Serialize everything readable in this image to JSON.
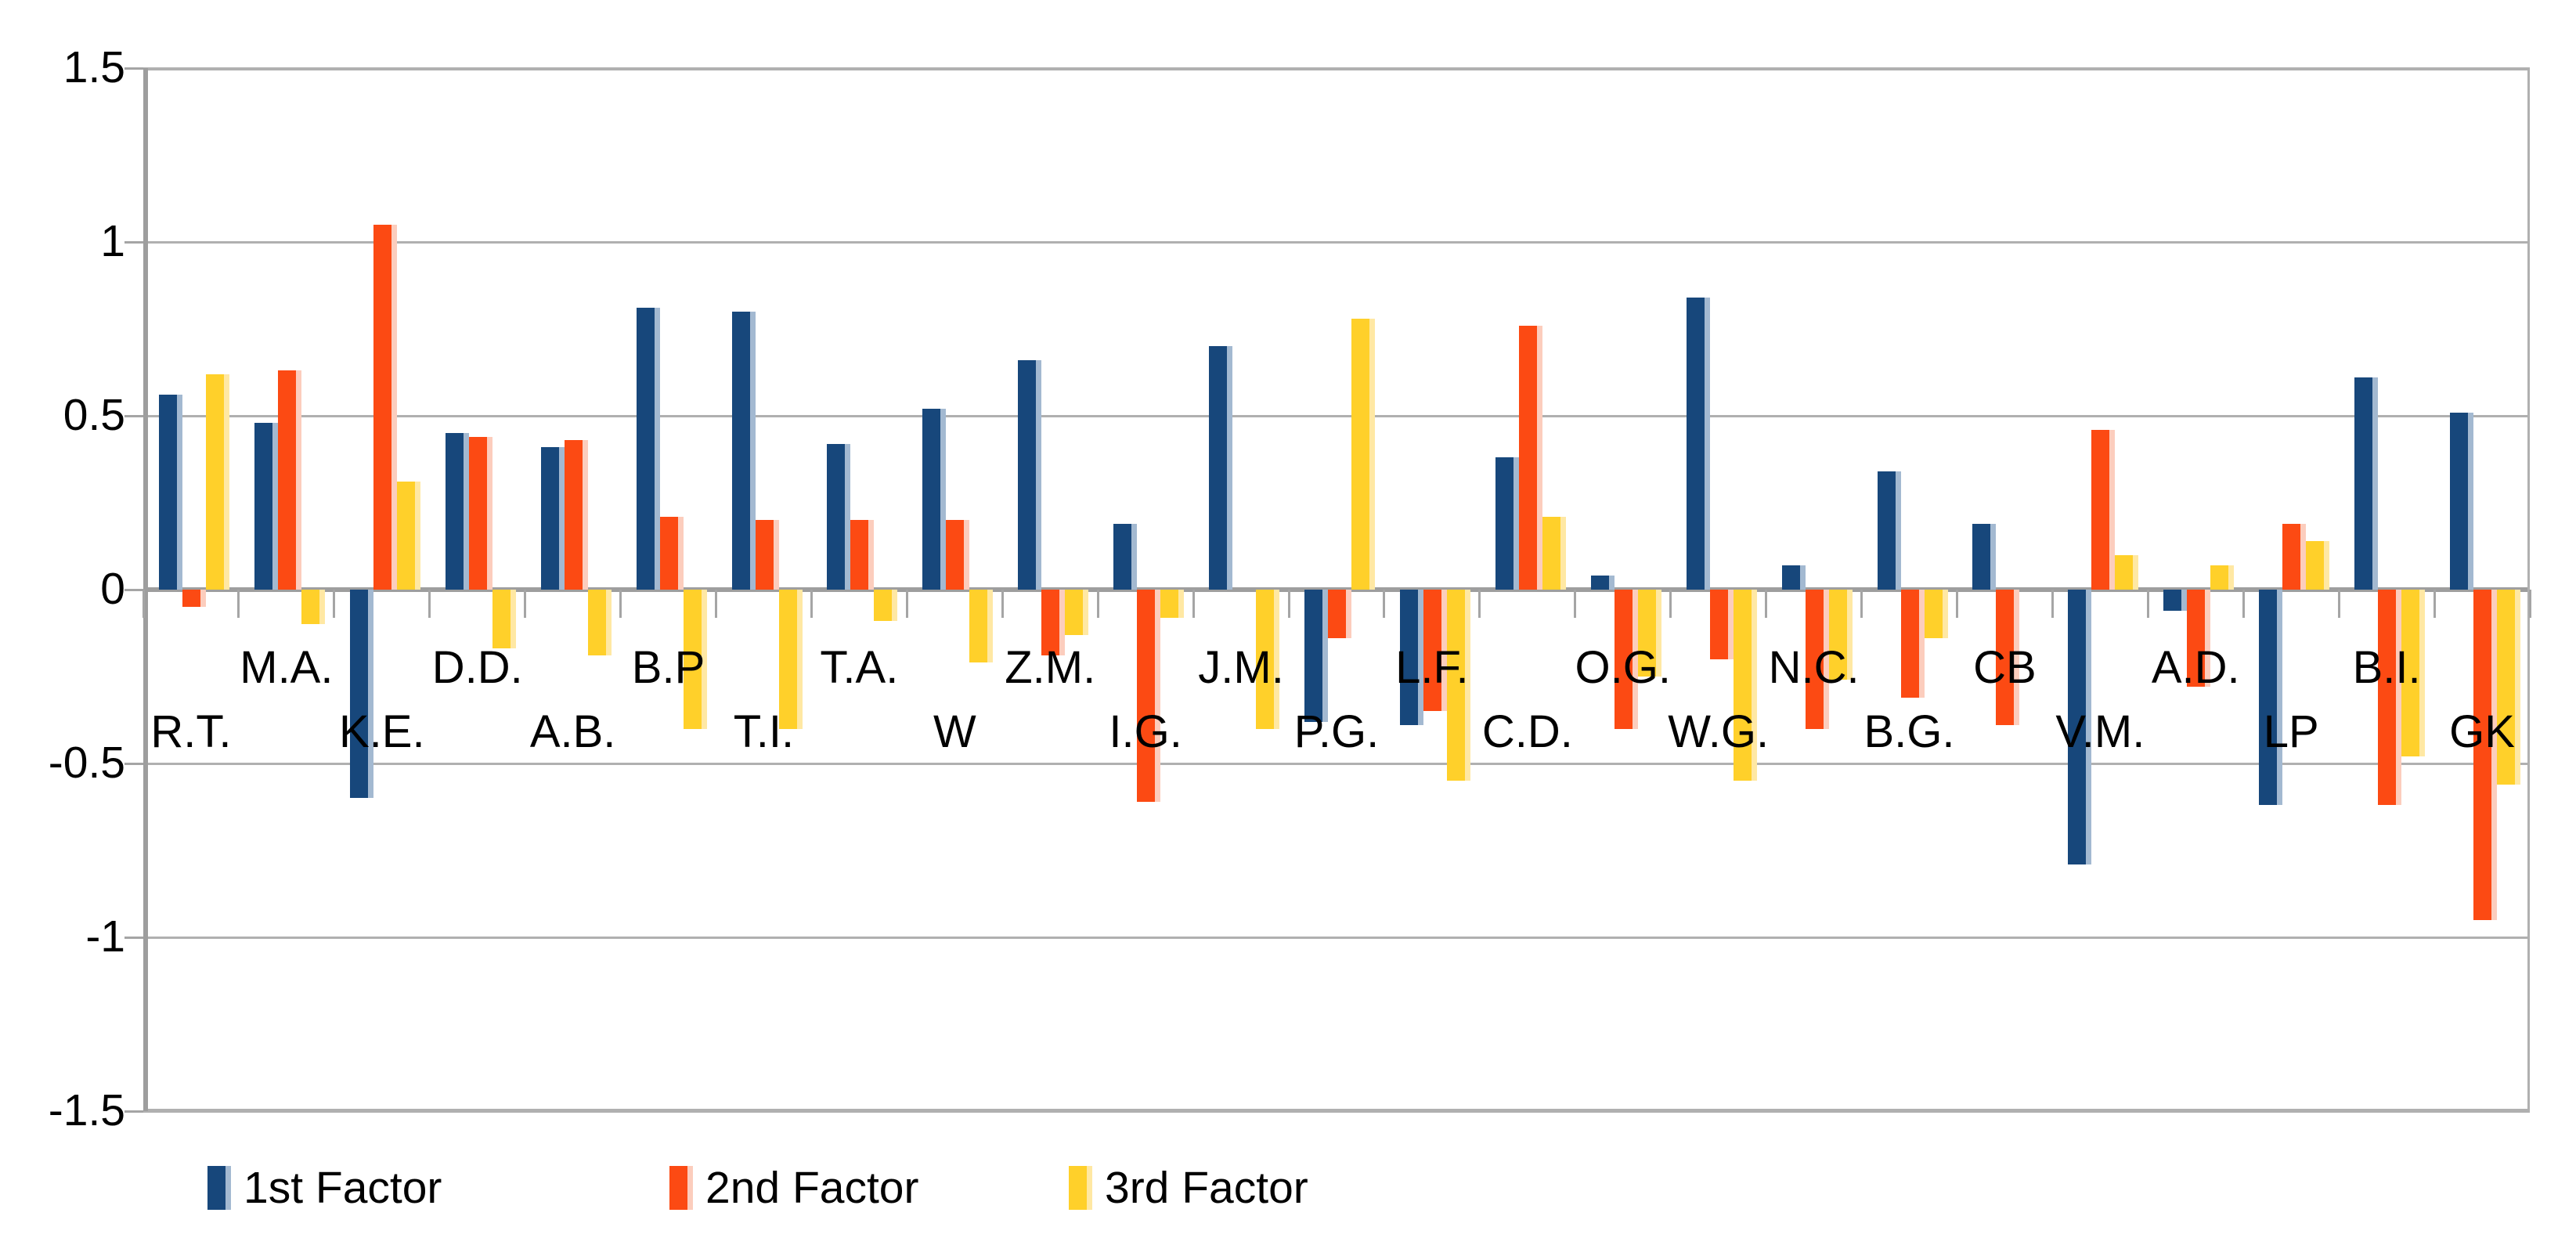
{
  "chart_data": {
    "type": "bar",
    "title": "",
    "xlabel": "",
    "ylabel": "",
    "categories": [
      "R.T.",
      "M.A.",
      "K.E.",
      "D.D.",
      "A.B.",
      "B.P",
      "T.I.",
      "T.A.",
      "W",
      "Z.M.",
      "I.G.",
      "J.M.",
      "P.G.",
      "L.F.",
      "C.D.",
      "O.G.",
      "W.G.",
      "N.C.",
      "B.G.",
      "CB",
      "V.M.",
      "A.D.",
      "LP",
      "B.I.",
      "GK"
    ],
    "series": [
      {
        "name": "1st Factor",
        "color": "#17477B",
        "tint": "#A3B9D1",
        "values": [
          0.56,
          0.48,
          -0.6,
          0.45,
          0.41,
          0.81,
          0.8,
          0.42,
          0.52,
          0.66,
          0.19,
          0.7,
          -0.38,
          -0.39,
          0.38,
          0.04,
          0.84,
          0.07,
          0.34,
          0.19,
          -0.79,
          -0.06,
          -0.62,
          0.61,
          0.51
        ]
      },
      {
        "name": "2nd Factor",
        "color": "#FC4A13",
        "tint": "#FCCDBD",
        "values": [
          -0.05,
          0.63,
          1.05,
          0.44,
          0.43,
          0.21,
          0.2,
          0.2,
          0.2,
          -0.19,
          -0.61,
          0.0,
          -0.14,
          -0.35,
          0.76,
          -0.4,
          -0.2,
          -0.4,
          -0.31,
          -0.39,
          0.46,
          -0.28,
          0.19,
          -0.62,
          -0.95
        ]
      },
      {
        "name": "3rd Factor",
        "color": "#FFD02A",
        "tint": "#FFE8A3",
        "values": [
          0.62,
          -0.1,
          0.31,
          -0.17,
          -0.19,
          -0.4,
          -0.4,
          -0.09,
          -0.21,
          -0.13,
          -0.08,
          -0.4,
          0.78,
          -0.55,
          0.21,
          -0.25,
          -0.55,
          -0.26,
          -0.14,
          0.0,
          0.1,
          0.07,
          0.14,
          -0.48,
          -0.56
        ]
      }
    ],
    "y_ticks": [
      "1.5",
      "1",
      "0.5",
      "0",
      "-0.5",
      "-1",
      "-1.5"
    ],
    "y_tick_values": [
      1.5,
      1,
      0.5,
      0,
      -0.5,
      -1,
      -1.5
    ],
    "ylim": [
      -1.5,
      1.5
    ],
    "grid": true,
    "legend_position": "bottom",
    "colors": {
      "gridline": "#B0B0B0",
      "axis": "#9E9E9E",
      "tick": "#A5A5A5",
      "background": "#FFFFFF",
      "text": "#000000"
    }
  }
}
